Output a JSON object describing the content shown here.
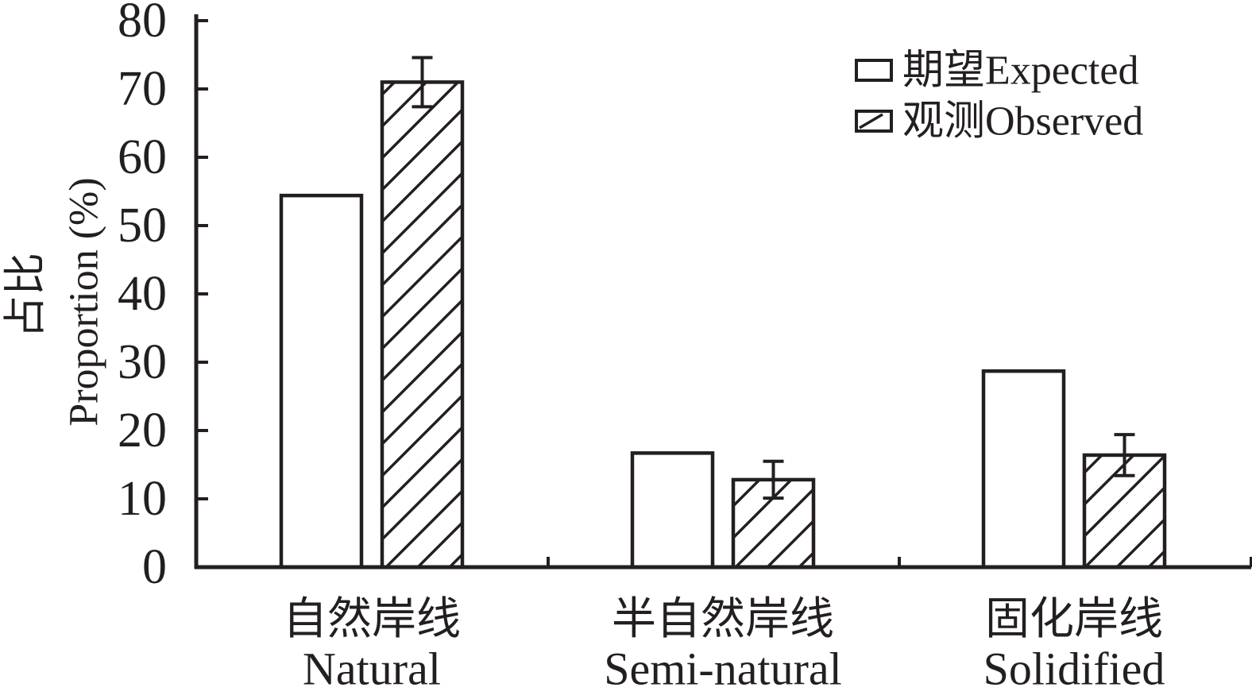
{
  "figure": {
    "background": "#ffffff",
    "ink": "#231f20"
  },
  "chart_data": {
    "type": "bar",
    "title": "",
    "categories": [
      {
        "zh": "自然岸线",
        "en": "Natural"
      },
      {
        "zh": "半自然岸线",
        "en": "Semi-natural"
      },
      {
        "zh": "固化岸线",
        "en": "Solidified"
      }
    ],
    "series": [
      {
        "name": "期望Expected",
        "style": "plain",
        "values": [
          54.4,
          16.7,
          28.7
        ]
      },
      {
        "name": "观测Observed",
        "style": "hatched",
        "values": [
          71.0,
          12.8,
          16.4
        ],
        "error_bars": [
          3.6,
          2.7,
          3.0
        ]
      }
    ],
    "ylabel_zh": "占比",
    "ylabel_en": "Proportion (%)",
    "xlabel": "",
    "ylim": [
      0,
      80
    ],
    "ytick_step": 10,
    "yticks": [
      "0",
      "10",
      "20",
      "30",
      "40",
      "50",
      "60",
      "70",
      "80"
    ],
    "legend": {
      "position": "top-right",
      "items": [
        {
          "label": "期望Expected",
          "swatch": "plain"
        },
        {
          "label": "观测Observed",
          "swatch": "hatched"
        }
      ]
    },
    "grid": false,
    "bar_fill": "#ffffff",
    "hatch_direction": "forward-slash"
  }
}
